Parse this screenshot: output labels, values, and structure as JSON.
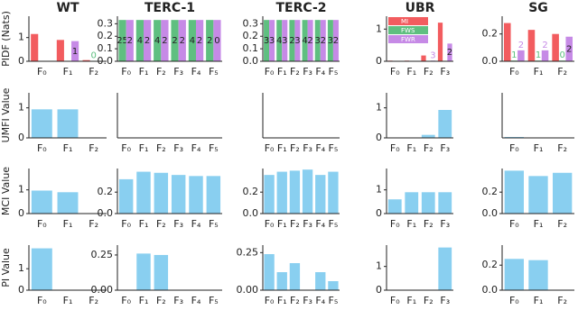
{
  "chart_data": [
    {
      "type": "bar",
      "title": "WT",
      "ylabel": "PIDF (Nats)",
      "categories": [
        "F₀",
        "F₁",
        "F₂"
      ],
      "series": [
        {
          "color": "#f25c5f",
          "values": [
            1.15,
            0.9,
            0.05
          ]
        },
        {
          "color": "#5fbf80",
          "values": [
            null,
            null,
            0.02
          ],
          "labels": [
            null,
            null,
            "0"
          ]
        },
        {
          "color": "#c68ae6",
          "values": [
            null,
            0.85,
            null
          ],
          "labels": [
            null,
            "1",
            null
          ]
        }
      ],
      "ylim": [
        0,
        1.9
      ],
      "yticks": [
        0,
        1
      ]
    },
    {
      "type": "bar",
      "title": "TERC-1",
      "categories": [
        "F₀",
        "F₁",
        "F₂",
        "F₃",
        "F₄",
        "F₅"
      ],
      "series": [
        {
          "color": "#5fbf80",
          "values": [
            0.33,
            0.33,
            0.33,
            0.33,
            0.33,
            0.33
          ],
          "labels": [
            "25",
            "4",
            "4",
            "2",
            "4",
            "2"
          ]
        },
        {
          "color": "#c68ae6",
          "values": [
            0.33,
            0.33,
            0.33,
            0.33,
            0.33,
            0.33
          ],
          "labels": [
            "2",
            "2",
            "2",
            "2",
            "2",
            "0"
          ]
        }
      ],
      "ylim": [
        0,
        0.36
      ],
      "yticks": [
        {
          "value": 0,
          "label": "0.0"
        },
        {
          "value": 0.1,
          "label": "0.1"
        },
        {
          "value": 0.2,
          "label": "0.2"
        },
        {
          "value": 0.3,
          "label": "0.3"
        }
      ]
    },
    {
      "type": "bar",
      "title": "TERC-2",
      "categories": [
        "F₀",
        "F₁",
        "F₂",
        "F₃",
        "F₄",
        "F₅"
      ],
      "series": [
        {
          "color": "#5fbf80",
          "values": [
            0.33,
            0.33,
            0.33,
            0.33,
            0.33,
            0.33
          ],
          "labels": [
            "3",
            "4",
            "2",
            "4",
            "3",
            "3"
          ]
        },
        {
          "color": "#c68ae6",
          "values": [
            0.33,
            0.33,
            0.33,
            0.33,
            0.33,
            0.33
          ],
          "labels": [
            "3",
            "3",
            "3",
            "2",
            "2",
            "2"
          ]
        }
      ],
      "ylim": [
        0,
        0.36
      ],
      "yticks": [
        {
          "value": 0,
          "label": "0.0"
        },
        {
          "value": 0.1,
          "label": "0.1"
        },
        {
          "value": 0.2,
          "label": "0.2"
        },
        {
          "value": 0.3,
          "label": "0.3"
        }
      ]
    },
    {
      "type": "bar",
      "title": "UBR",
      "categories": [
        "F₀",
        "F₁",
        "F₂",
        "F₃"
      ],
      "series": [
        {
          "name": "MI",
          "color": "#f25c5f",
          "values": [
            0.02,
            0.02,
            0.18,
            1.2
          ]
        },
        {
          "name": "FWS",
          "color": "#5fbf80",
          "values": [
            null,
            null,
            null,
            null
          ]
        },
        {
          "name": "FWR",
          "color": "#c68ae6",
          "values": [
            null,
            null,
            0.02,
            0.55
          ],
          "labels": [
            null,
            null,
            "3",
            "2"
          ]
        }
      ],
      "legend": "upper left",
      "ylim": [
        0,
        1.4
      ],
      "yticks": [
        0,
        1
      ]
    },
    {
      "type": "bar",
      "title": "SG",
      "categories": [
        "F₀",
        "F₁",
        "F₂"
      ],
      "series": [
        {
          "color": "#f25c5f",
          "values": [
            0.28,
            0.23,
            0.2
          ]
        },
        {
          "color": "#5fbf80",
          "values": [
            0.005,
            0.005,
            0.005
          ],
          "labels": [
            "1",
            "1",
            "0"
          ]
        },
        {
          "color": "#c68ae6",
          "values": [
            0.08,
            0.08,
            0.18
          ],
          "labels": [
            "2",
            "2",
            "2"
          ]
        }
      ],
      "ylim": [
        0,
        0.33
      ],
      "yticks": [
        {
          "value": 0,
          "label": "0.0"
        },
        {
          "value": 0.2,
          "label": "0.2"
        }
      ]
    },
    {
      "type": "bar",
      "ylabel": "UMFI Value",
      "categories": [
        "F₀",
        "F₁",
        "F₂"
      ],
      "values": [
        0.95,
        0.95,
        0.01
      ],
      "color": "#89cff0",
      "ylim": [
        0,
        1.5
      ],
      "yticks": [
        0,
        1
      ]
    },
    {
      "type": "bar",
      "categories": [
        "F₀",
        "F₁",
        "F₂",
        "F₃",
        "F₄",
        "F₅"
      ],
      "values": [
        0,
        0,
        0,
        0,
        0,
        0
      ],
      "color": "#89cff0",
      "ylim": [
        0,
        1
      ],
      "yticks": []
    },
    {
      "type": "bar",
      "categories": [
        "F₀",
        "F₁",
        "F₂",
        "F₃",
        "F₄",
        "F₅"
      ],
      "values": [
        0,
        0,
        0,
        0,
        0,
        0
      ],
      "color": "#89cff0",
      "ylim": [
        0,
        1
      ],
      "yticks": []
    },
    {
      "type": "bar",
      "categories": [
        "F₀",
        "F₁",
        "F₂",
        "F₃"
      ],
      "values": [
        0,
        0,
        0.1,
        0.93
      ],
      "color": "#89cff0",
      "ylim": [
        0,
        1.5
      ],
      "yticks": [
        0,
        1
      ]
    },
    {
      "type": "bar",
      "categories": [
        "F₀",
        "F₁",
        "F₂"
      ],
      "values": [
        0.02,
        0,
        0
      ],
      "color": "#89cff0",
      "ylim": [
        0,
        1
      ],
      "yticks": []
    },
    {
      "type": "bar",
      "ylabel": "MCI Value",
      "categories": [
        "F₀",
        "F₁",
        "F₂"
      ],
      "values": [
        0.97,
        0.9,
        0.01
      ],
      "color": "#89cff0",
      "ylim": [
        0,
        1.9
      ],
      "yticks": [
        0,
        1
      ]
    },
    {
      "type": "bar",
      "categories": [
        "F₀",
        "F₁",
        "F₂",
        "F₃",
        "F₄",
        "F₅"
      ],
      "values": [
        0.32,
        0.39,
        0.38,
        0.36,
        0.35,
        0.35
      ],
      "color": "#89cff0",
      "ylim": [
        0,
        0.42
      ],
      "yticks": [
        {
          "value": 0,
          "label": "0.0"
        },
        {
          "value": 0.2,
          "label": "0.2"
        }
      ]
    },
    {
      "type": "bar",
      "categories": [
        "F₀",
        "F₁",
        "F₂",
        "F₃",
        "F₄",
        "F₅"
      ],
      "values": [
        0.36,
        0.39,
        0.4,
        0.41,
        0.36,
        0.39
      ],
      "color": "#89cff0",
      "ylim": [
        0,
        0.42
      ],
      "yticks": [
        {
          "value": 0,
          "label": "0.0"
        },
        {
          "value": 0.2,
          "label": "0.2"
        }
      ]
    },
    {
      "type": "bar",
      "categories": [
        "F₀",
        "F₁",
        "F₂",
        "F₃"
      ],
      "values": [
        0.6,
        0.9,
        0.9,
        0.9
      ],
      "color": "#89cff0",
      "ylim": [
        0,
        1.9
      ],
      "yticks": [
        0,
        1
      ]
    },
    {
      "type": "bar",
      "categories": [
        "F₀",
        "F₁",
        "F₂"
      ],
      "values": [
        0.4,
        0.35,
        0.38
      ],
      "color": "#89cff0",
      "ylim": [
        0,
        0.42
      ],
      "yticks": [
        {
          "value": 0,
          "label": "0.0"
        },
        {
          "value": 0.2,
          "label": "0.2"
        }
      ]
    },
    {
      "type": "bar",
      "ylabel": "PI Value",
      "categories": [
        "F₀",
        "F₁",
        "F₂"
      ],
      "values": [
        1.95,
        0,
        0
      ],
      "color": "#89cff0",
      "ylim": [
        0,
        2.1
      ],
      "yticks": [
        0,
        1
      ]
    },
    {
      "type": "bar",
      "categories": [
        "F₀",
        "F₁",
        "F₂",
        "F₃",
        "F₄",
        "F₅"
      ],
      "values": [
        0,
        0.26,
        0.25,
        0,
        0,
        0
      ],
      "color": "#89cff0",
      "ylim": [
        0,
        0.32
      ],
      "yticks": [
        {
          "value": 0,
          "label": "0.00"
        },
        {
          "value": 0.25,
          "label": "0.25"
        }
      ]
    },
    {
      "type": "bar",
      "categories": [
        "F₀",
        "F₁",
        "F₂",
        "F₃",
        "F₄",
        "F₅"
      ],
      "values": [
        0.24,
        0.12,
        0.18,
        0,
        0.12,
        0.06
      ],
      "color": "#89cff0",
      "ylim": [
        0,
        0.3
      ],
      "yticks": [
        {
          "value": 0,
          "label": "0.00"
        },
        {
          "value": 0.25,
          "label": "0.25"
        }
      ]
    },
    {
      "type": "bar",
      "categories": [
        "F₀",
        "F₁",
        "F₂",
        "F₃"
      ],
      "values": [
        0,
        0,
        0,
        1.8
      ],
      "color": "#89cff0",
      "ylim": [
        0,
        1.9
      ],
      "yticks": [
        0,
        1
      ]
    },
    {
      "type": "bar",
      "categories": [
        "F₀",
        "F₁",
        "F₂"
      ],
      "values": [
        0.25,
        0.24,
        0
      ],
      "color": "#89cff0",
      "ylim": [
        0,
        0.36
      ],
      "yticks": [
        {
          "value": 0,
          "label": "0.0"
        },
        {
          "value": 0.2,
          "label": "0.2"
        }
      ]
    }
  ]
}
